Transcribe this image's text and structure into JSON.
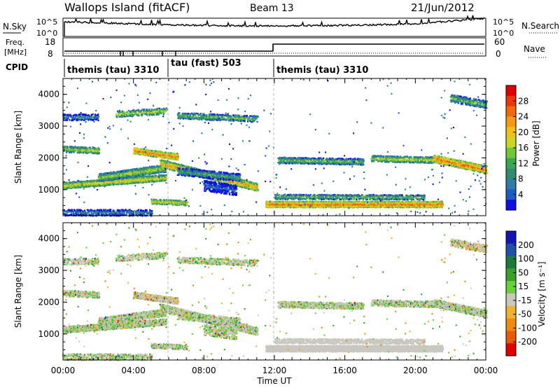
{
  "header": {
    "title": "Wallops Island (fitACF)",
    "beam": "Beam 13",
    "date": "21/Jun/2012"
  },
  "summary": {
    "nsky_label": "N.Sky",
    "nsky_ticks": [
      "10^5",
      "10^0"
    ],
    "nsearch_label": "N.Search",
    "nsearch_ticks": [
      "10^5",
      "10^0"
    ],
    "freq_label": "Freq.",
    "freq_unit": "[MHz]",
    "freq_ticks": [
      "18",
      "8"
    ],
    "nave_label": "Nave",
    "nave_ticks": [
      "60",
      "0"
    ],
    "cpid_label": "CPID",
    "cpid_segments": [
      {
        "label": "themis (tau) 3310",
        "start_hour": 0
      },
      {
        "label": "tau (fast) 503",
        "start_hour": 6
      },
      {
        "label": "themis (tau) 3310",
        "start_hour": 12
      }
    ]
  },
  "chart_data": [
    {
      "type": "heatmap",
      "name": "power",
      "ylabel": "Slant Range [km]",
      "yticks": [
        "1000",
        "2000",
        "3000",
        "4000"
      ],
      "ylim": [
        180,
        4500
      ],
      "xlim": [
        0,
        24
      ],
      "colorbar_label": "Power [dB]",
      "colorbar_ticks": [
        "28",
        "24",
        "20",
        "16",
        "12",
        "8",
        "4"
      ],
      "colors": [
        "#1010e0",
        "#1a5cc4",
        "#2e7aa8",
        "#2f8a6e",
        "#3aa64e",
        "#6dc83a",
        "#c8d62a",
        "#f2c01a",
        "#f59a12",
        "#f06a0c",
        "#e8380a",
        "#e00000"
      ]
    },
    {
      "type": "heatmap",
      "name": "velocity",
      "ylabel": "Slant Range [km]",
      "yticks": [
        "1000",
        "2000",
        "3000",
        "4000"
      ],
      "ylim": [
        180,
        4500
      ],
      "xlim": [
        0,
        24
      ],
      "xlabel": "Time UT",
      "xticks": [
        "00:00",
        "04:00",
        "08:00",
        "12:00",
        "16:00",
        "20:00",
        "00:00"
      ],
      "colorbar_label": "Velocity [m s⁻¹]",
      "colorbar_ticks": [
        "200",
        "100",
        "50",
        "15",
        "-15",
        "-50",
        "-100",
        "-200"
      ],
      "colors": [
        "#1414b4",
        "#1e50a8",
        "#1e7a3a",
        "#3aa02a",
        "#6ad03c",
        "#c8c8c0",
        "#f0b030",
        "#f08a10",
        "#e85a0a",
        "#e00000"
      ]
    }
  ]
}
